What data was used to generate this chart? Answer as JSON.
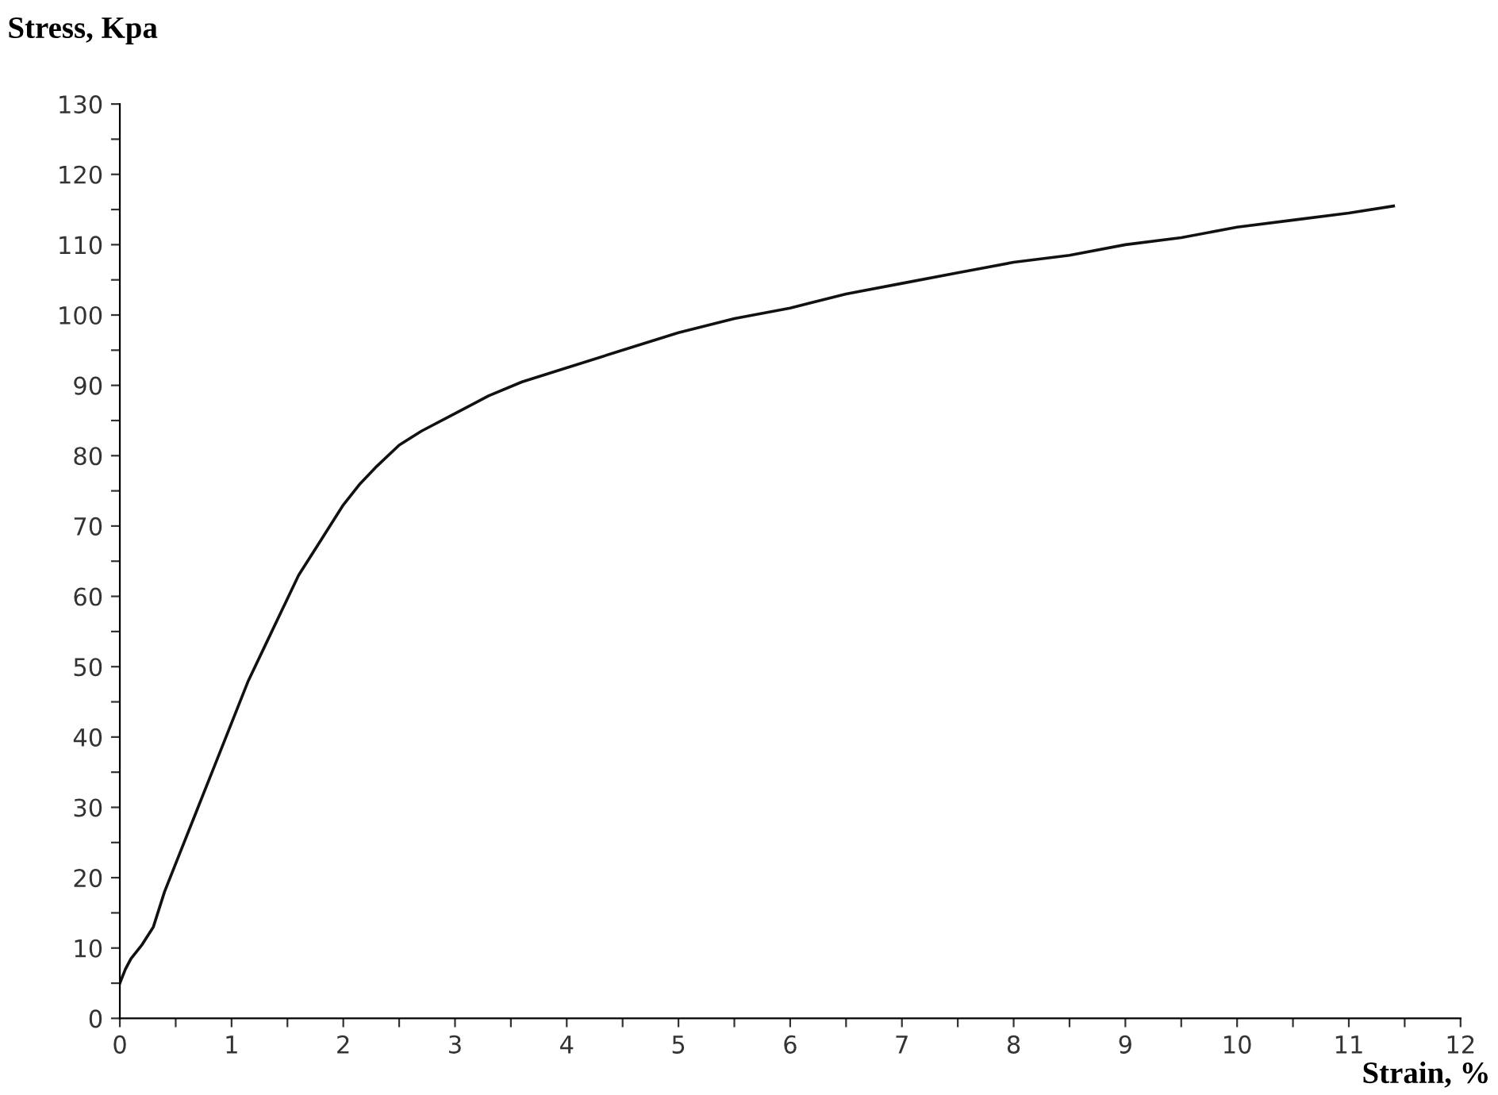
{
  "chart_data": {
    "type": "line",
    "xlabel": "Strain, %",
    "ylabel": "Stress, Kpa",
    "series": [
      {
        "color": "#111111",
        "x": [
          0,
          0.05,
          0.1,
          0.2,
          0.3,
          0.4,
          0.55,
          0.7,
          0.85,
          1.0,
          1.15,
          1.3,
          1.45,
          1.6,
          1.8,
          2.0,
          2.15,
          2.3,
          2.5,
          2.7,
          3.0,
          3.3,
          3.6,
          4.0,
          4.5,
          5.0,
          5.5,
          6.0,
          6.5,
          7.0,
          7.5,
          8.0,
          8.5,
          9.0,
          9.5,
          10.0,
          10.5,
          11.0,
          11.4
        ],
        "values": [
          5,
          7,
          8.5,
          10.5,
          13,
          18,
          24,
          30,
          36,
          42,
          48,
          53,
          58,
          63,
          68,
          73,
          76,
          78.5,
          81.5,
          83.5,
          86,
          88.5,
          90.5,
          92.5,
          95,
          97.5,
          99.5,
          101,
          103,
          104.5,
          106,
          107.5,
          108.5,
          110,
          111,
          112.5,
          113.5,
          114.5,
          115.5
        ]
      }
    ],
    "xlim": [
      0,
      12
    ],
    "ylim": [
      0,
      130
    ],
    "xticks": [
      0,
      {
        "value": 0.5,
        "label": null
      },
      1,
      {
        "value": 1.5,
        "label": null
      },
      2,
      {
        "value": 2.5,
        "label": null
      },
      3,
      {
        "value": 3.5,
        "label": null
      },
      4,
      {
        "value": 4.5,
        "label": null
      },
      5,
      {
        "value": 5.5,
        "label": null
      },
      6,
      {
        "value": 6.5,
        "label": null
      },
      7,
      {
        "value": 7.5,
        "label": null
      },
      8,
      {
        "value": 8.5,
        "label": null
      },
      9,
      {
        "value": 9.5,
        "label": null
      },
      10,
      {
        "value": 10.5,
        "label": null
      },
      11,
      {
        "value": 11.5,
        "label": null
      },
      12
    ],
    "yticks": [
      0,
      {
        "value": 5,
        "label": null
      },
      10,
      {
        "value": 15,
        "label": null
      },
      20,
      {
        "value": 25,
        "label": null
      },
      30,
      {
        "value": 35,
        "label": null
      },
      40,
      {
        "value": 45,
        "label": null
      },
      50,
      {
        "value": 55,
        "label": null
      },
      60,
      {
        "value": 65,
        "label": null
      },
      70,
      {
        "value": 75,
        "label": null
      },
      80,
      {
        "value": 85,
        "label": null
      },
      90,
      {
        "value": 95,
        "label": null
      },
      100,
      {
        "value": 105,
        "label": null
      },
      110,
      {
        "value": 115,
        "label": null
      },
      120,
      {
        "value": 125,
        "label": null
      },
      130
    ],
    "grid": false,
    "marker": "none",
    "line_style": "solid"
  }
}
